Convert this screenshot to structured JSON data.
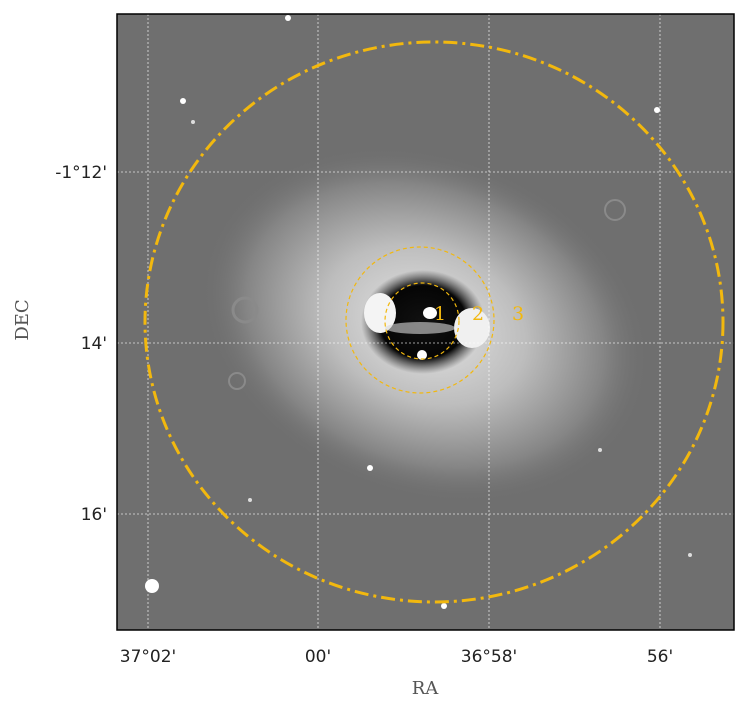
{
  "figure": {
    "xlabel": "RA",
    "ylabel": "DEC",
    "xticks": [
      "37°02'",
      "00'",
      "36°58'",
      "56'"
    ],
    "yticks": [
      "-1°12'",
      "14'",
      "16'"
    ],
    "region_labels": [
      "1",
      "2",
      "3"
    ]
  }
}
